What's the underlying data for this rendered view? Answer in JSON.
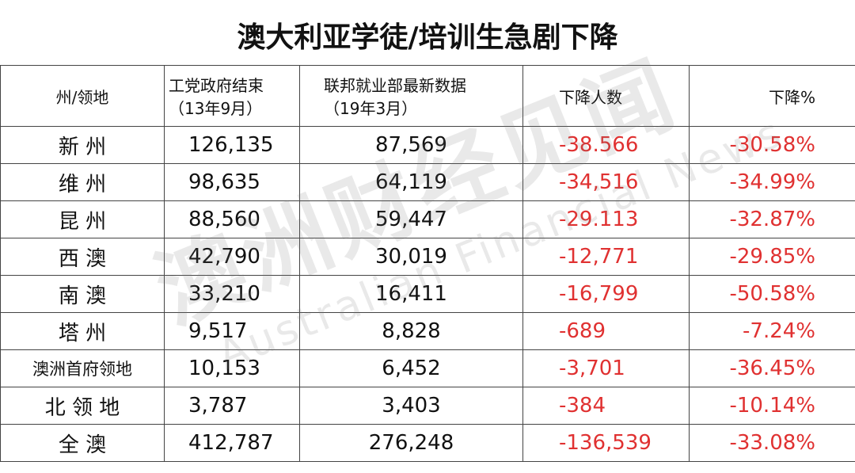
{
  "title": "澳大利亚学徒/培训生急剧下降",
  "watermark": {
    "cn": "澳洲财经见闻",
    "en": "Australian Financial News"
  },
  "table": {
    "header": [
      [
        "州/领地"
      ],
      [
        "工党政府结束",
        "（13年9月）"
      ],
      [
        "联邦就业部最新数据",
        "（19年3月）"
      ],
      [
        "下降人数"
      ],
      [
        "下降%"
      ]
    ],
    "rows": [
      [
        "新 州",
        "126,135",
        "87,569",
        "-38.566",
        "-30.58%"
      ],
      [
        "维 州",
        "98,635",
        "64,119",
        "-34,516",
        "-34.99%"
      ],
      [
        "昆 州",
        "88,560",
        "59,447",
        "-29.113",
        "-32.87%"
      ],
      [
        "西 澳",
        "42,790",
        "30,019",
        "-12,771",
        "-29.85%"
      ],
      [
        "南 澳",
        "33,210",
        "16,411",
        "-16,799",
        "-50.58%"
      ],
      [
        "塔 州",
        "9,517",
        "8,828",
        "-689",
        "-7.24%"
      ],
      [
        "澳洲首府领地",
        "10,153",
        "6,452",
        "-3,701",
        "-36.45%"
      ],
      [
        "北 领 地",
        "3,787",
        "3,403",
        "-384",
        "-10.14%"
      ],
      [
        "全 澳",
        "412,787",
        "276,248",
        "-136,539",
        "-33.08%"
      ]
    ]
  }
}
